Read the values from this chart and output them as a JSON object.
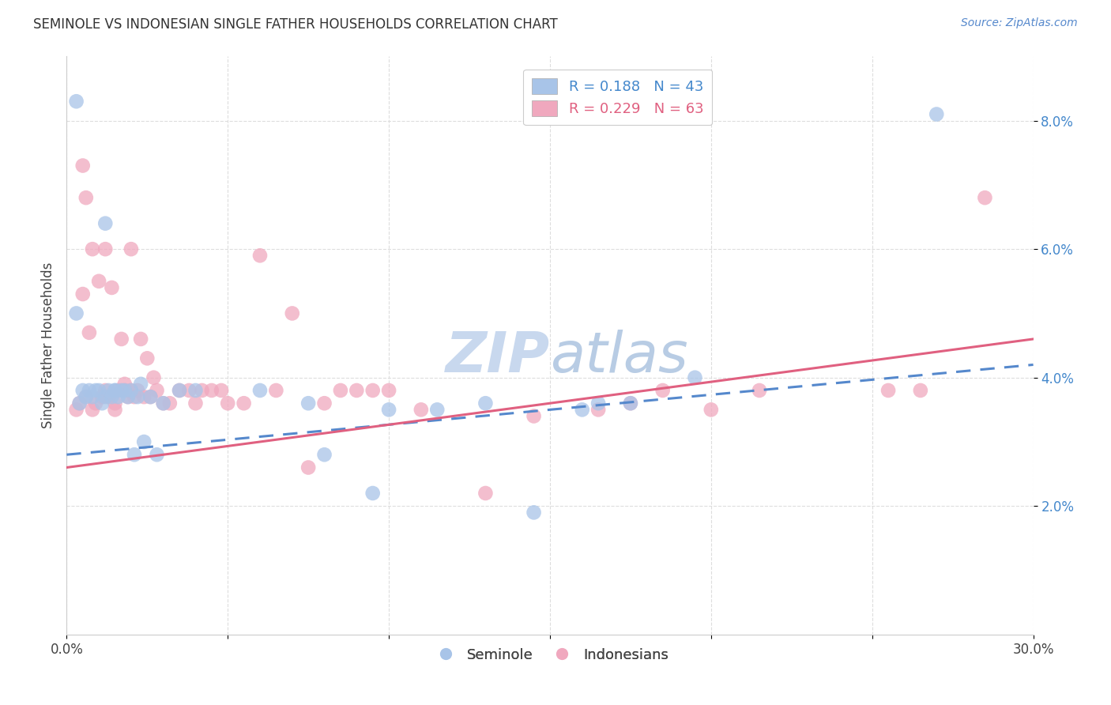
{
  "title": "SEMINOLE VS INDONESIAN SINGLE FATHER HOUSEHOLDS CORRELATION CHART",
  "source": "Source: ZipAtlas.com",
  "ylabel": "Single Father Households",
  "legend_blue_r": "R = 0.188",
  "legend_blue_n": "N = 43",
  "legend_pink_r": "R = 0.229",
  "legend_pink_n": "N = 63",
  "legend_label_blue": "Seminole",
  "legend_label_pink": "Indonesians",
  "xlim": [
    0.0,
    0.3
  ],
  "ylim": [
    0.0,
    0.09
  ],
  "yticks": [
    0.02,
    0.04,
    0.06,
    0.08
  ],
  "ytick_labels": [
    "2.0%",
    "4.0%",
    "6.0%",
    "8.0%"
  ],
  "blue_color": "#a8c4e8",
  "pink_color": "#f0a8be",
  "blue_line_color": "#5588cc",
  "pink_line_color": "#e06080",
  "watermark_color": "#c8d8ee",
  "background_color": "#ffffff",
  "grid_color": "#dddddd",
  "seminole_x": [
    0.003,
    0.004,
    0.005,
    0.006,
    0.007,
    0.008,
    0.009,
    0.01,
    0.011,
    0.012,
    0.013,
    0.014,
    0.015,
    0.015,
    0.016,
    0.017,
    0.018,
    0.019,
    0.02,
    0.021,
    0.022,
    0.023,
    0.024,
    0.026,
    0.028,
    0.03,
    0.035,
    0.04,
    0.06,
    0.075,
    0.08,
    0.095,
    0.1,
    0.115,
    0.13,
    0.145,
    0.16,
    0.165,
    0.175,
    0.195,
    0.27,
    0.003,
    0.012
  ],
  "seminole_y": [
    0.083,
    0.036,
    0.038,
    0.037,
    0.038,
    0.037,
    0.038,
    0.038,
    0.036,
    0.037,
    0.038,
    0.037,
    0.038,
    0.038,
    0.037,
    0.038,
    0.038,
    0.037,
    0.038,
    0.028,
    0.037,
    0.039,
    0.03,
    0.037,
    0.028,
    0.036,
    0.038,
    0.038,
    0.038,
    0.036,
    0.028,
    0.022,
    0.035,
    0.035,
    0.036,
    0.019,
    0.035,
    0.036,
    0.036,
    0.04,
    0.081,
    0.05,
    0.064
  ],
  "indonesian_x": [
    0.003,
    0.004,
    0.005,
    0.006,
    0.007,
    0.008,
    0.008,
    0.009,
    0.01,
    0.011,
    0.012,
    0.012,
    0.013,
    0.014,
    0.015,
    0.015,
    0.016,
    0.017,
    0.018,
    0.018,
    0.019,
    0.02,
    0.02,
    0.021,
    0.022,
    0.023,
    0.024,
    0.025,
    0.026,
    0.027,
    0.028,
    0.03,
    0.032,
    0.035,
    0.038,
    0.04,
    0.042,
    0.045,
    0.048,
    0.05,
    0.055,
    0.06,
    0.065,
    0.07,
    0.075,
    0.08,
    0.085,
    0.09,
    0.095,
    0.1,
    0.11,
    0.13,
    0.145,
    0.165,
    0.175,
    0.185,
    0.2,
    0.215,
    0.255,
    0.265,
    0.285,
    0.005,
    0.006
  ],
  "indonesian_y": [
    0.035,
    0.036,
    0.053,
    0.037,
    0.047,
    0.035,
    0.06,
    0.036,
    0.055,
    0.037,
    0.038,
    0.06,
    0.037,
    0.054,
    0.035,
    0.036,
    0.038,
    0.046,
    0.038,
    0.039,
    0.037,
    0.038,
    0.06,
    0.037,
    0.038,
    0.046,
    0.037,
    0.043,
    0.037,
    0.04,
    0.038,
    0.036,
    0.036,
    0.038,
    0.038,
    0.036,
    0.038,
    0.038,
    0.038,
    0.036,
    0.036,
    0.059,
    0.038,
    0.05,
    0.026,
    0.036,
    0.038,
    0.038,
    0.038,
    0.038,
    0.035,
    0.022,
    0.034,
    0.035,
    0.036,
    0.038,
    0.035,
    0.038,
    0.038,
    0.038,
    0.068,
    0.073,
    0.068
  ],
  "blue_trend_x0": 0.0,
  "blue_trend_y0": 0.028,
  "blue_trend_x1": 0.3,
  "blue_trend_y1": 0.042,
  "pink_trend_x0": 0.0,
  "pink_trend_y0": 0.026,
  "pink_trend_x1": 0.3,
  "pink_trend_y1": 0.046
}
